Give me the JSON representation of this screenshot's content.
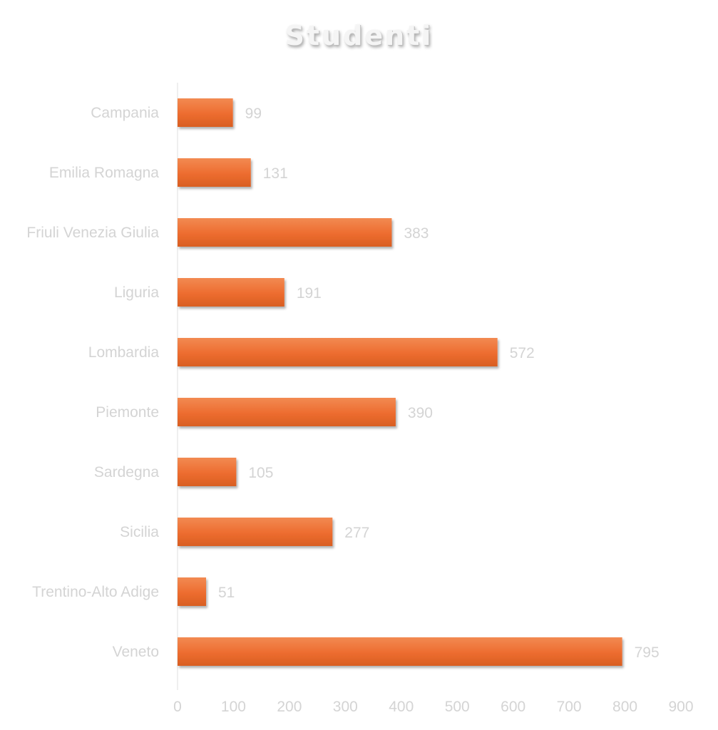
{
  "chart_data": {
    "type": "bar",
    "orientation": "horizontal",
    "title": "Studenti",
    "categories": [
      "Campania",
      "Emilia Romagna",
      "Friuli Venezia Giulia",
      "Liguria",
      "Lombardia",
      "Piemonte",
      "Sardegna",
      "Sicilia",
      "Trentino-Alto Adige",
      "Veneto"
    ],
    "values": [
      99,
      131,
      383,
      191,
      572,
      390,
      105,
      277,
      51,
      795
    ],
    "xlim": [
      0,
      900
    ],
    "xticks": [
      "0",
      "100",
      "200",
      "300",
      "400",
      "500",
      "600",
      "700",
      "800",
      "900"
    ],
    "xlabel": "",
    "ylabel": "",
    "grid": false,
    "data_labels": true,
    "colors": {
      "bar": "#ed6c2f",
      "bar_light": "#f28a52",
      "bar_dark": "#c9531c",
      "label": "#d4d4d4",
      "axis": "#efefef"
    }
  }
}
